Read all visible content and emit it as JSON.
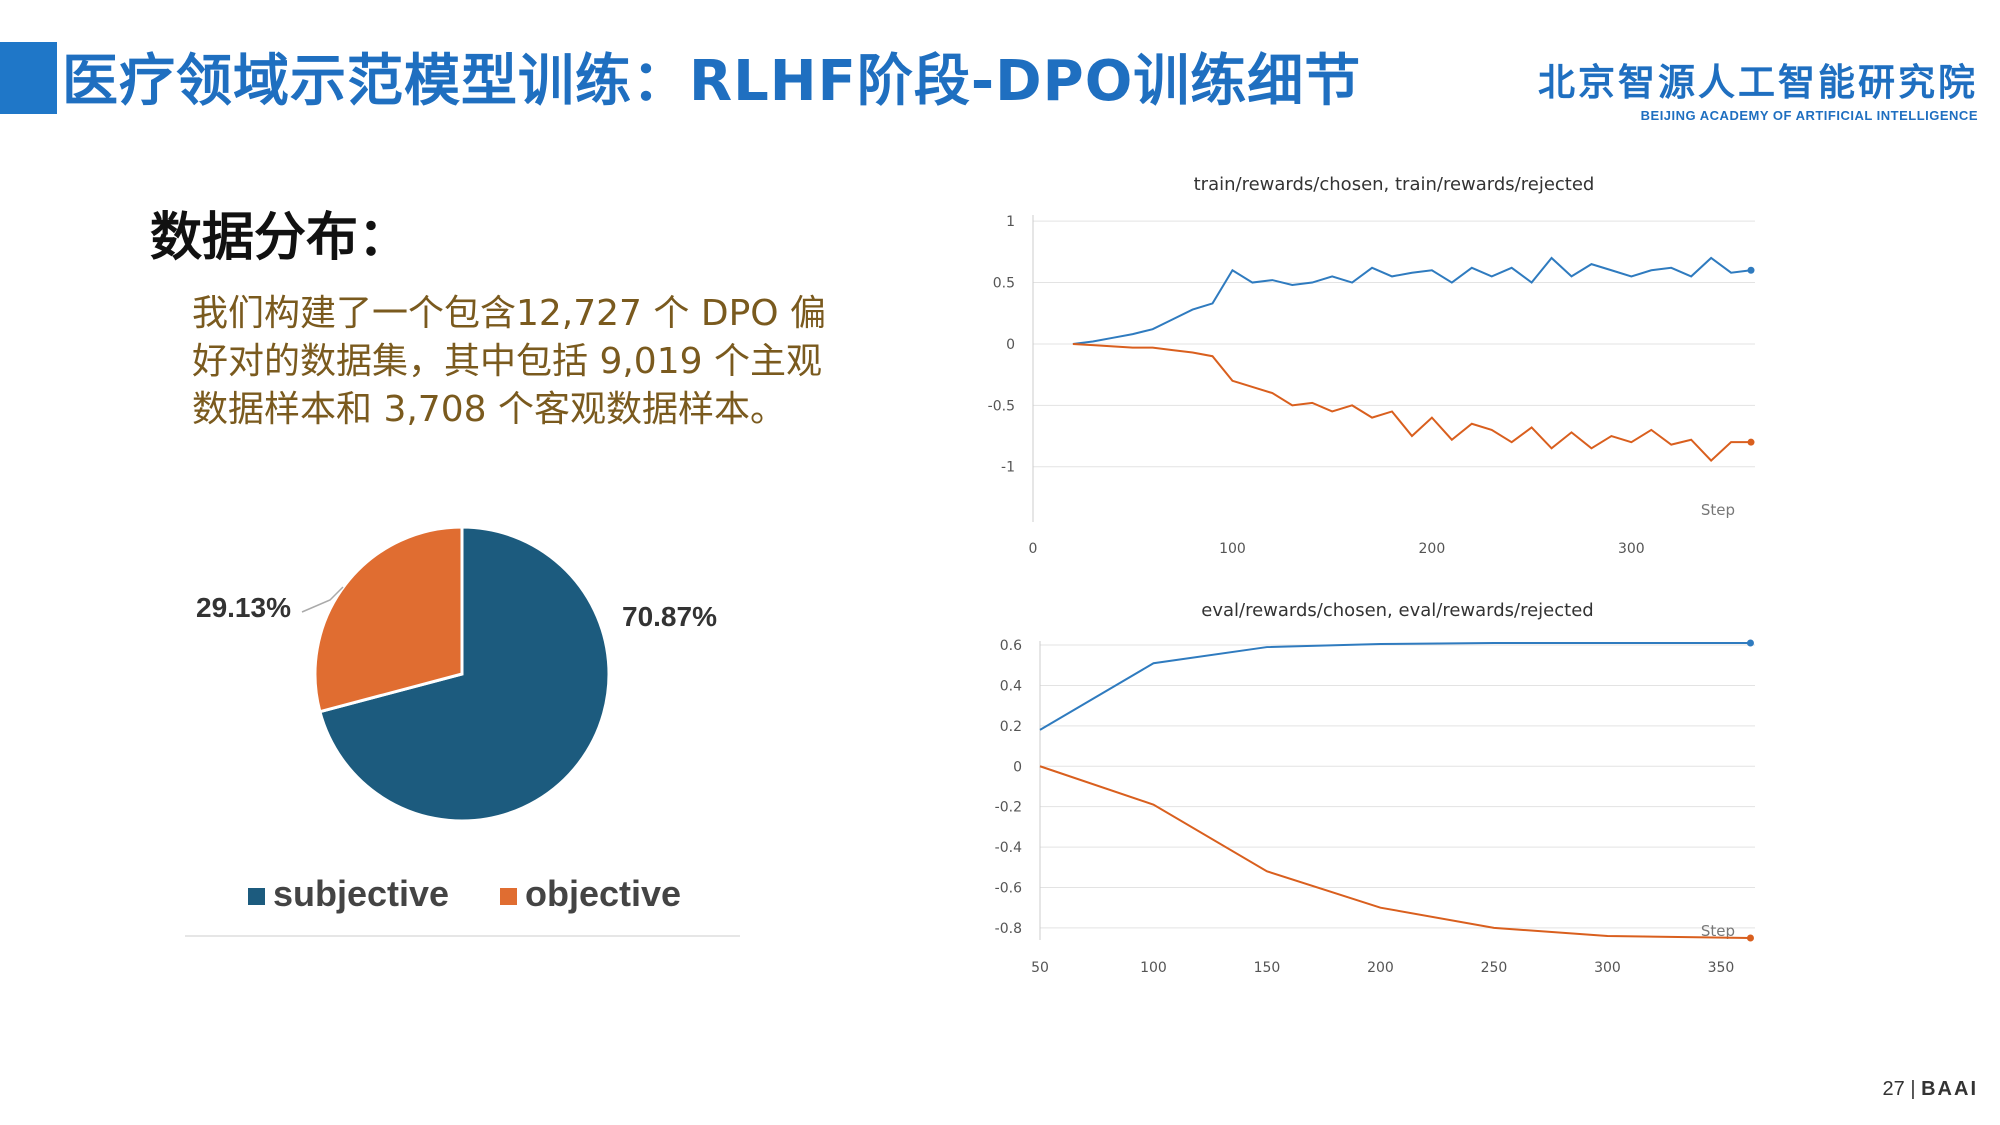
{
  "header": {
    "title": "医疗领域示范模型训练：RLHF阶段-DPO训练细节",
    "logo_cn": "北京智源人工智能研究院",
    "logo_en": "BEIJING ACADEMY OF ARTIFICIAL INTELLIGENCE",
    "accent_color": "#1f6fc0"
  },
  "section": {
    "title": "数据分布：",
    "description_lines": [
      "我们构建了一个包含12,727 个 DPO 偏",
      "好对的数据集，其中包括 9,019 个主观",
      "数据样本和 3,708 个客观数据样本。"
    ]
  },
  "footer": {
    "page": "27",
    "brand": "BAAI"
  },
  "chart_data": [
    {
      "type": "pie",
      "title": "",
      "categories": [
        "subjective",
        "objective"
      ],
      "values": [
        70.87,
        29.13
      ],
      "labels": [
        "70.87%",
        "29.13%"
      ],
      "colors": [
        "#1c5b7e",
        "#e06d31"
      ],
      "legend": "bottom"
    },
    {
      "type": "line",
      "title": "train/rewards/chosen, train/rewards/rejected",
      "xlabel": "Step",
      "xlim": [
        0,
        362
      ],
      "ylim": [
        -1.45,
        1.05
      ],
      "xticks": [
        0,
        100,
        200,
        300
      ],
      "yticks": [
        1,
        0.5,
        0,
        -0.5,
        -1
      ],
      "ytick_labels": [
        "1",
        "0.5",
        "0",
        "-0.5",
        "-1"
      ],
      "grid": true,
      "series": [
        {
          "color": "#2f7bbf",
          "x": [
            20,
            30,
            40,
            50,
            60,
            70,
            80,
            90,
            100,
            110,
            120,
            130,
            140,
            150,
            160,
            170,
            180,
            190,
            200,
            210,
            220,
            230,
            240,
            250,
            260,
            270,
            280,
            290,
            300,
            310,
            320,
            330,
            340,
            350,
            360
          ],
          "y": [
            0,
            0.02,
            0.05,
            0.08,
            0.12,
            0.2,
            0.28,
            0.33,
            0.6,
            0.5,
            0.52,
            0.48,
            0.5,
            0.55,
            0.5,
            0.62,
            0.55,
            0.58,
            0.6,
            0.5,
            0.62,
            0.55,
            0.62,
            0.5,
            0.7,
            0.55,
            0.65,
            0.6,
            0.55,
            0.6,
            0.62,
            0.55,
            0.7,
            0.58,
            0.6
          ]
        },
        {
          "color": "#d95f1e",
          "x": [
            20,
            30,
            40,
            50,
            60,
            70,
            80,
            90,
            100,
            110,
            120,
            130,
            140,
            150,
            160,
            170,
            180,
            190,
            200,
            210,
            220,
            230,
            240,
            250,
            260,
            270,
            280,
            290,
            300,
            310,
            320,
            330,
            340,
            350,
            360
          ],
          "y": [
            0,
            -0.01,
            -0.02,
            -0.03,
            -0.03,
            -0.05,
            -0.07,
            -0.1,
            -0.3,
            -0.35,
            -0.4,
            -0.5,
            -0.48,
            -0.55,
            -0.5,
            -0.6,
            -0.55,
            -0.75,
            -0.6,
            -0.78,
            -0.65,
            -0.7,
            -0.8,
            -0.68,
            -0.85,
            -0.72,
            -0.85,
            -0.75,
            -0.8,
            -0.7,
            -0.82,
            -0.78,
            -0.95,
            -0.8,
            -0.8
          ]
        }
      ]
    },
    {
      "type": "line",
      "title": "eval/rewards/chosen, eval/rewards/rejected",
      "xlabel": "Step",
      "xlim": [
        50,
        365
      ],
      "ylim": [
        -0.86,
        0.62
      ],
      "xticks": [
        50,
        100,
        150,
        200,
        250,
        300,
        350
      ],
      "yticks": [
        0.6,
        0.4,
        0.2,
        0,
        -0.2,
        -0.4,
        -0.6,
        -0.8
      ],
      "ytick_labels": [
        "0.6",
        "0.4",
        "0.2",
        "0",
        "-0.2",
        "-0.4",
        "-0.6",
        "-0.8"
      ],
      "grid": true,
      "series": [
        {
          "color": "#2f7bbf",
          "x": [
            50,
            100,
            150,
            200,
            250,
            300,
            363
          ],
          "y": [
            0.18,
            0.51,
            0.59,
            0.605,
            0.61,
            0.61,
            0.61
          ]
        },
        {
          "color": "#d95f1e",
          "x": [
            50,
            100,
            150,
            200,
            250,
            300,
            363
          ],
          "y": [
            0,
            -0.19,
            -0.52,
            -0.7,
            -0.8,
            -0.84,
            -0.85
          ]
        }
      ]
    }
  ]
}
